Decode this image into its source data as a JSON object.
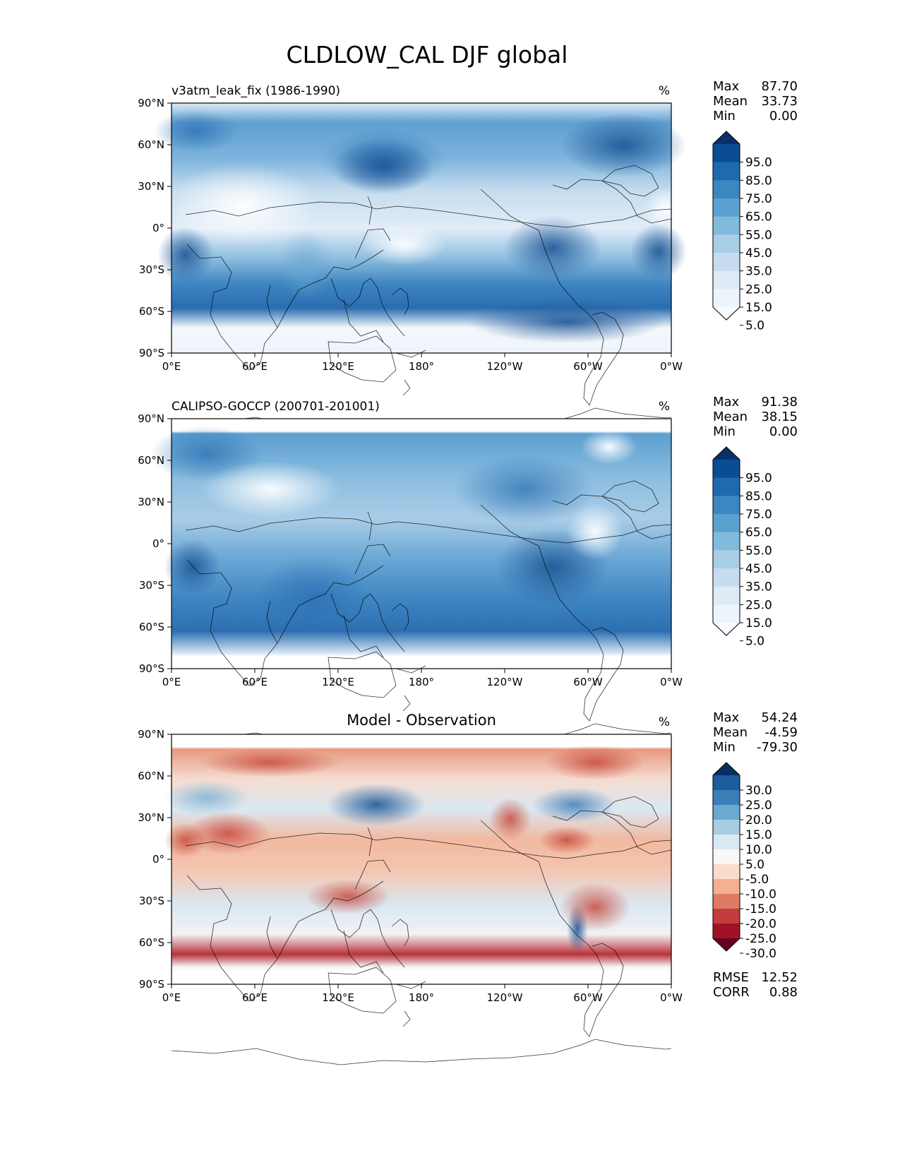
{
  "title": "CLDLOW_CAL DJF global",
  "xticks": [
    "0°E",
    "60°E",
    "120°E",
    "180°",
    "120°W",
    "60°W",
    "0°W"
  ],
  "yticks": [
    "90°N",
    "60°N",
    "30°N",
    "0°",
    "30°S",
    "60°S",
    "90°S"
  ],
  "chart_data": [
    {
      "type": "heatmap",
      "title": "v3atm_leak_fix (1986-1990)",
      "units": "%",
      "stats": [
        {
          "label": "Max",
          "value": "87.70"
        },
        {
          "label": "Mean",
          "value": "33.73"
        },
        {
          "label": "Min",
          "value": "0.00"
        }
      ],
      "colorbar": {
        "labels": [
          "95.0",
          "85.0",
          "75.0",
          "65.0",
          "55.0",
          "45.0",
          "35.0",
          "25.0",
          "15.0",
          "5.0"
        ],
        "colors": [
          "#08306b",
          "#0b4d94",
          "#1f69b1",
          "#3c87c1",
          "#5aa1cf",
          "#81badb",
          "#a8cfe6",
          "#c8dcf0",
          "#deebf7",
          "#eef4fb",
          "#f7fbff"
        ]
      },
      "xlim": [
        0,
        360
      ],
      "ylim": [
        -90,
        90
      ]
    },
    {
      "type": "heatmap",
      "title": "CALIPSO-GOCCP (200701-201001)",
      "units": "%",
      "stats": [
        {
          "label": "Max",
          "value": "91.38"
        },
        {
          "label": "Mean",
          "value": "38.15"
        },
        {
          "label": "Min",
          "value": "0.00"
        }
      ],
      "colorbar": {
        "labels": [
          "95.0",
          "85.0",
          "75.0",
          "65.0",
          "55.0",
          "45.0",
          "35.0",
          "25.0",
          "15.0",
          "5.0"
        ],
        "colors": [
          "#08306b",
          "#0b4d94",
          "#1f69b1",
          "#3c87c1",
          "#5aa1cf",
          "#81badb",
          "#a8cfe6",
          "#c8dcf0",
          "#deebf7",
          "#eef4fb",
          "#f7fbff"
        ]
      },
      "xlim": [
        0,
        360
      ],
      "ylim": [
        -90,
        90
      ]
    },
    {
      "type": "heatmap",
      "title": "Model - Observation",
      "units": "%",
      "stats": [
        {
          "label": "Max",
          "value": "54.24"
        },
        {
          "label": "Mean",
          "value": "-4.59"
        },
        {
          "label": "Min",
          "value": "-79.30"
        }
      ],
      "colorbar": {
        "labels": [
          "30.0",
          "25.0",
          "20.0",
          "15.0",
          "10.0",
          "5.0",
          "-5.0",
          "-10.0",
          "-15.0",
          "-20.0",
          "-25.0",
          "-30.0"
        ],
        "colors": [
          "#053061",
          "#1c5c9e",
          "#3b7fb9",
          "#6aa9d0",
          "#a7cde3",
          "#d9e8f1",
          "#f7f7f7",
          "#fbdccb",
          "#f3b092",
          "#df7a63",
          "#c33c3c",
          "#a11228",
          "#67001f"
        ]
      },
      "footer": [
        {
          "label": "RMSE",
          "value": "12.52"
        },
        {
          "label": "CORR",
          "value": "0.88"
        }
      ],
      "xlim": [
        0,
        360
      ],
      "ylim": [
        -90,
        90
      ]
    }
  ]
}
